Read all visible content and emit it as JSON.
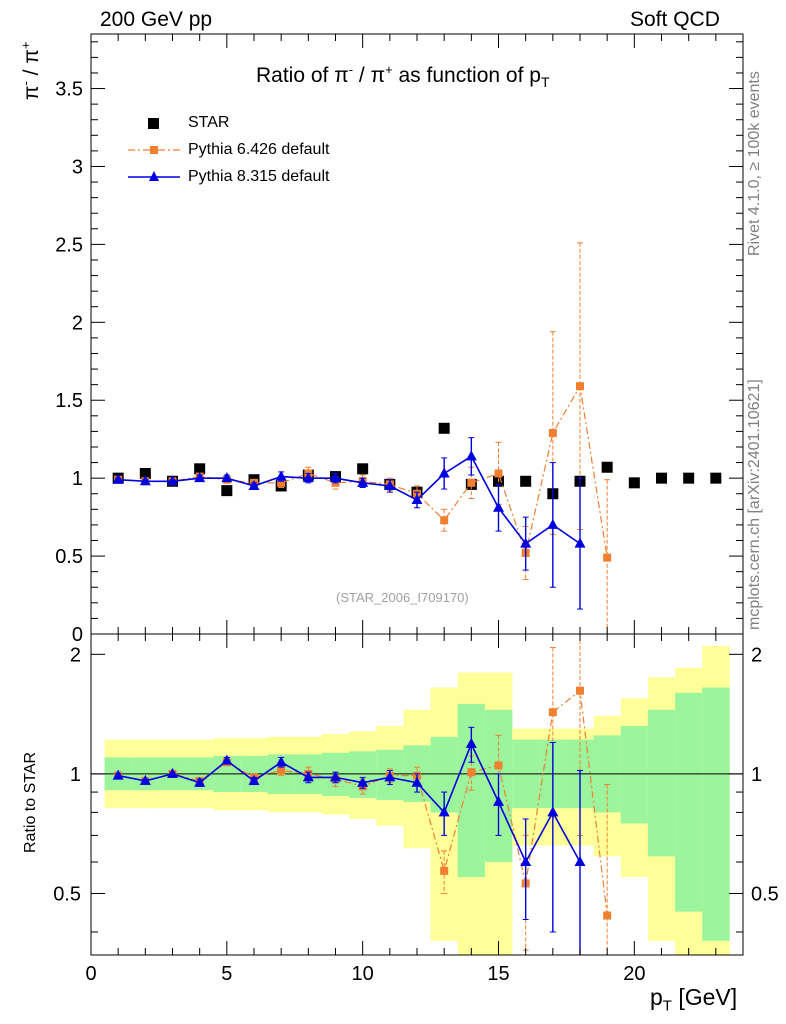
{
  "header": {
    "left": "200 GeV pp",
    "right": "Soft QCD",
    "side_events": "Rivet 4.1.0, ≥ 100k events",
    "side_site": "mcplots.cern.ch [arXiv:2401.10621]",
    "analysis_id": "(STAR_2006_I709170)"
  },
  "colors": {
    "star": "#000000",
    "py6": "#f07f30",
    "py8": "#0000e0",
    "band_inner": "#9cf59c",
    "band_outer": "#ffff99"
  },
  "chart_data": [
    {
      "type": "scatter",
      "title": "Ratio of π⁻ / π⁺ as function of p_T",
      "title_parts": {
        "main": "Ratio of ",
        "pim": "π",
        "pim_sup": "-",
        "sep": " / ",
        "pip": "π",
        "pip_sup": "+",
        "tail": " as function of p",
        "sub": "T"
      },
      "xlabel": "p_T [GeV]",
      "ylabel": "π⁻ / π⁺",
      "ylabel_parts": {
        "pim": "π",
        "pim_sup": "-",
        "sep": " / ",
        "pip": "π",
        "pip_sup": "+"
      },
      "xlim": [
        0,
        24
      ],
      "ylim": [
        0,
        3.85
      ],
      "xticks": [
        0,
        5,
        10,
        15,
        20
      ],
      "yticks": [
        0,
        0.5,
        1,
        1.5,
        2,
        2.5,
        3,
        3.5
      ],
      "ytick_labels": [
        "0",
        "0.5",
        "1",
        "1.5",
        "2",
        "2.5",
        "3",
        "3.5"
      ],
      "legend": [
        "STAR",
        "Pythia 6.426 default",
        "Pythia 8.315 default"
      ],
      "legend_position": "top-left",
      "series": [
        {
          "name": "STAR",
          "x": [
            1,
            2,
            3,
            4,
            5,
            6,
            7,
            8,
            9,
            10,
            11,
            12,
            13,
            14,
            15,
            16,
            17,
            18,
            19,
            20,
            21,
            22,
            23
          ],
          "y": [
            1.0,
            1.03,
            0.98,
            1.06,
            0.92,
            0.99,
            0.95,
            1.02,
            1.01,
            1.06,
            0.96,
            0.91,
            1.32,
            0.96,
            0.98,
            0.98,
            0.9,
            0.98,
            1.07,
            0.97,
            1.0,
            1.0,
            1.0
          ]
        },
        {
          "name": "Pythia 6.426 default",
          "x": [
            1,
            2,
            3,
            4,
            5,
            6,
            7,
            8,
            9,
            10,
            11,
            12,
            13,
            14,
            15,
            16,
            17,
            18,
            19
          ],
          "y": [
            0.99,
            0.98,
            0.98,
            1.01,
            0.99,
            0.97,
            0.97,
            1.03,
            0.97,
            0.98,
            0.96,
            0.9,
            0.73,
            0.97,
            1.03,
            0.52,
            1.29,
            1.59,
            0.49
          ],
          "err": [
            0.01,
            0.01,
            0.01,
            0.01,
            0.02,
            0.02,
            0.03,
            0.04,
            0.04,
            0.04,
            0.04,
            0.05,
            0.07,
            0.1,
            0.2,
            0.17,
            0.65,
            0.92,
            0.5
          ]
        },
        {
          "name": "Pythia 8.315 default",
          "x": [
            1,
            2,
            3,
            4,
            5,
            6,
            7,
            8,
            9,
            10,
            11,
            12,
            13,
            14,
            15,
            16,
            17,
            18
          ],
          "y": [
            0.99,
            0.98,
            0.98,
            1.0,
            1.0,
            0.95,
            1.01,
            1.0,
            1.0,
            0.97,
            0.95,
            0.86,
            1.03,
            1.14,
            0.81,
            0.58,
            0.7,
            0.58
          ],
          "err": [
            0.01,
            0.01,
            0.01,
            0.02,
            0.02,
            0.02,
            0.03,
            0.03,
            0.03,
            0.03,
            0.04,
            0.05,
            0.1,
            0.12,
            0.15,
            0.17,
            0.4,
            0.42
          ]
        }
      ]
    },
    {
      "type": "scatter",
      "title": "",
      "xlabel": "p_T [GeV]",
      "ylabel": "Ratio to STAR",
      "xlim": [
        0,
        24
      ],
      "ylim": [
        0.35,
        2.25
      ],
      "yticks": [
        0.5,
        1,
        2
      ],
      "ytick_labels": [
        "0.5",
        "1",
        "2"
      ],
      "bands": {
        "edges": [
          0.5,
          1.5,
          2.5,
          3.5,
          4.5,
          5.5,
          6.5,
          7.5,
          8.5,
          9.5,
          10.5,
          11.5,
          12.5,
          13.5,
          14.5,
          15.5,
          16.5,
          17.5,
          18.5,
          19.5,
          20.5,
          21.5,
          22.5,
          23.5
        ],
        "inner_lo": [
          0.91,
          0.91,
          0.91,
          0.91,
          0.9,
          0.9,
          0.89,
          0.89,
          0.88,
          0.87,
          0.86,
          0.85,
          0.8,
          0.55,
          0.6,
          0.82,
          0.82,
          0.82,
          0.8,
          0.75,
          0.62,
          0.45,
          0.38
        ],
        "inner_hi": [
          1.1,
          1.1,
          1.1,
          1.1,
          1.11,
          1.11,
          1.12,
          1.12,
          1.13,
          1.14,
          1.15,
          1.18,
          1.24,
          1.5,
          1.45,
          1.22,
          1.22,
          1.22,
          1.25,
          1.32,
          1.45,
          1.6,
          1.65
        ],
        "outer_lo": [
          0.82,
          0.82,
          0.82,
          0.82,
          0.81,
          0.81,
          0.8,
          0.8,
          0.79,
          0.77,
          0.74,
          0.65,
          0.38,
          0.35,
          0.35,
          0.66,
          0.66,
          0.66,
          0.62,
          0.55,
          0.38,
          0.35,
          0.35
        ],
        "outer_hi": [
          1.22,
          1.22,
          1.22,
          1.22,
          1.23,
          1.23,
          1.24,
          1.24,
          1.26,
          1.28,
          1.32,
          1.45,
          1.65,
          1.8,
          1.8,
          1.3,
          1.3,
          1.3,
          1.4,
          1.55,
          1.75,
          1.85,
          2.1
        ]
      },
      "series": [
        {
          "name": "Pythia 6.426 default",
          "x": [
            1,
            2,
            3,
            4,
            5,
            6,
            7,
            8,
            9,
            10,
            11,
            12,
            13,
            14,
            15,
            16,
            17,
            18,
            19
          ],
          "y": [
            0.99,
            0.96,
            1.0,
            0.96,
            1.07,
            0.98,
            1.02,
            1.0,
            0.97,
            0.93,
            0.99,
            0.99,
            0.57,
            1.01,
            1.05,
            0.53,
            1.43,
            1.62,
            0.44
          ],
          "err": [
            0.01,
            0.01,
            0.01,
            0.01,
            0.02,
            0.02,
            0.03,
            0.04,
            0.04,
            0.04,
            0.04,
            0.05,
            0.07,
            0.1,
            0.2,
            0.17,
            0.65,
            0.92,
            0.5
          ]
        },
        {
          "name": "Pythia 8.315 default",
          "x": [
            1,
            2,
            3,
            4,
            5,
            6,
            7,
            8,
            9,
            10,
            11,
            12,
            13,
            14,
            15,
            16,
            17,
            18
          ],
          "y": [
            0.99,
            0.96,
            1.0,
            0.95,
            1.08,
            0.96,
            1.07,
            0.98,
            0.98,
            0.95,
            0.98,
            0.95,
            0.8,
            1.19,
            0.85,
            0.6,
            0.8,
            0.6
          ],
          "err": [
            0.01,
            0.01,
            0.01,
            0.02,
            0.02,
            0.02,
            0.03,
            0.03,
            0.03,
            0.03,
            0.04,
            0.05,
            0.1,
            0.12,
            0.15,
            0.17,
            0.4,
            0.42
          ]
        }
      ]
    }
  ]
}
